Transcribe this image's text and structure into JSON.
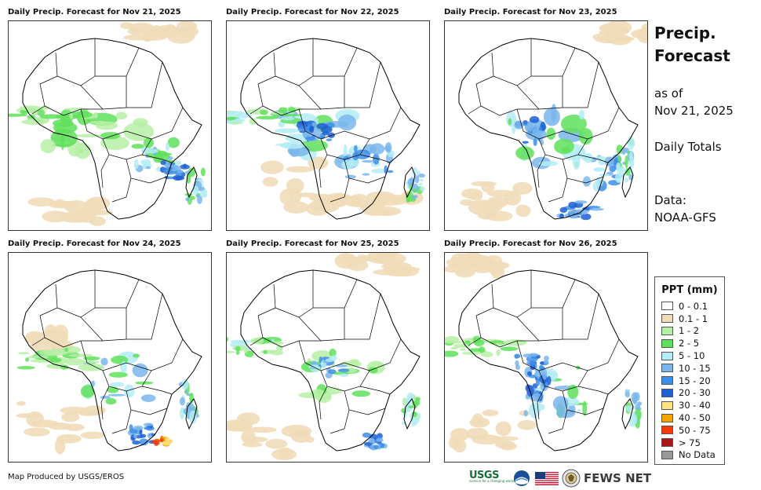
{
  "panels": [
    {
      "title": "Daily Precip. Forecast for Nov 21, 2025"
    },
    {
      "title": "Daily Precip. Forecast for Nov 22, 2025"
    },
    {
      "title": "Daily Precip. Forecast for Nov 23, 2025"
    },
    {
      "title": "Daily Precip. Forecast for Nov 24, 2025"
    },
    {
      "title": "Daily Precip. Forecast for Nov 25, 2025"
    },
    {
      "title": "Daily Precip. Forecast for Nov 26, 2025"
    }
  ],
  "side": {
    "title_line1": "Precip.",
    "title_line2": "Forecast",
    "asof_line1": "as of",
    "asof_line2": "Nov 21, 2025",
    "totals": "Daily Totals",
    "data_line1": "Data:",
    "data_line2": "NOAA-GFS"
  },
  "legend": {
    "title": "PPT (mm)",
    "items": [
      {
        "label": "0 - 0.1",
        "color": "#ffffff"
      },
      {
        "label": "0.1 - 1",
        "color": "#f0dcb8"
      },
      {
        "label": "1 - 2",
        "color": "#b6f0a6"
      },
      {
        "label": "2 - 5",
        "color": "#5fe05a"
      },
      {
        "label": "5 - 10",
        "color": "#b4ecf5"
      },
      {
        "label": "10 - 15",
        "color": "#7ab6ec"
      },
      {
        "label": "15 - 20",
        "color": "#3d8ee8"
      },
      {
        "label": "20 - 30",
        "color": "#1f5fd4"
      },
      {
        "label": "30 - 40",
        "color": "#fce484"
      },
      {
        "label": "40 - 50",
        "color": "#f5a400"
      },
      {
        "label": "50 - 75",
        "color": "#f23a0b"
      },
      {
        "label": "> 75",
        "color": "#a8161a"
      },
      {
        "label": "No Data",
        "color": "#999999"
      }
    ]
  },
  "footer": {
    "credit": "Map Produced by USGS/EROS",
    "usgs": "USGS",
    "usgs_tag": "science for a changing world",
    "fews": "FEWS NET"
  }
}
